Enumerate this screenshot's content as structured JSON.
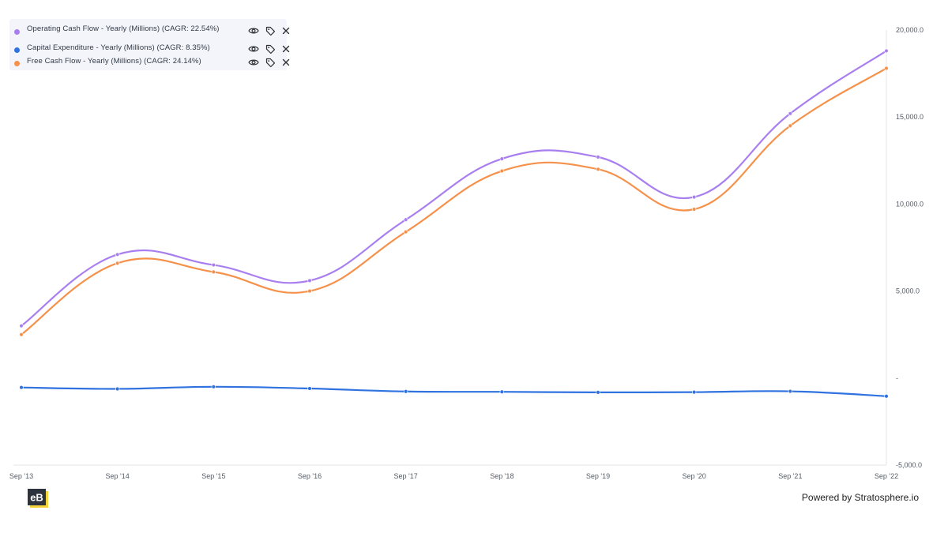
{
  "chart_data": {
    "type": "line",
    "categories": [
      "Sep '13",
      "Sep '14",
      "Sep '15",
      "Sep '16",
      "Sep '17",
      "Sep '18",
      "Sep '19",
      "Sep '20",
      "Sep '21",
      "Sep '22"
    ],
    "series": [
      {
        "name": "Operating Cash Flow - Yearly (Millions) (CAGR: 22.54%)",
        "color": "#a97ff0",
        "values": [
          3000,
          7100,
          6500,
          5600,
          9100,
          12600,
          12700,
          10400,
          15200,
          18800
        ]
      },
      {
        "name": "Capital Expenditure - Yearly (Millions) (CAGR: 8.35%)",
        "color": "#2f72e0",
        "values": [
          -540,
          -620,
          -500,
          -600,
          -770,
          -790,
          -820,
          -810,
          -760,
          -1040
        ]
      },
      {
        "name": "Free Cash Flow - Yearly (Millions) (CAGR: 24.14%)",
        "color": "#f5914a",
        "values": [
          2500,
          6600,
          6100,
          5000,
          8400,
          11900,
          12000,
          9700,
          14500,
          17800
        ]
      }
    ],
    "ylim": [
      -5000,
      20000
    ],
    "y_ticks": [
      20000,
      15000,
      10000,
      5000,
      0,
      -5000
    ],
    "y_tick_labels": [
      "20,000.0",
      "15,000.0",
      "10,000.0",
      "5,000.0",
      "-",
      "-5,000.0"
    ],
    "y_axis_side": "right",
    "grid": false,
    "legend_position": "top-left",
    "smooth": true
  },
  "legend": {
    "items": [
      {
        "label": "Operating Cash Flow - Yearly (Millions) (CAGR: 22.54%)",
        "color": "#a97ff0",
        "view_icon": "eye-icon",
        "tag_icon": "tag-icon",
        "remove_icon": "close-icon"
      },
      {
        "label": "Capital Expenditure - Yearly (Millions) (CAGR: 8.35%)",
        "color": "#2f72e0",
        "view_icon": "eye-icon",
        "tag_icon": "tag-icon",
        "remove_icon": "close-icon"
      },
      {
        "label": "Free Cash Flow - Yearly (Millions) (CAGR: 24.14%)",
        "color": "#f5914a",
        "view_icon": "eye-icon",
        "tag_icon": "tag-icon",
        "remove_icon": "close-icon"
      }
    ]
  },
  "footer": {
    "powered_by": "Powered by Stratosphere.io",
    "logo_text": "eB",
    "logo_colors": {
      "background": "#2d333d",
      "accent": "#f5d33a",
      "text": "#ffffff"
    }
  }
}
